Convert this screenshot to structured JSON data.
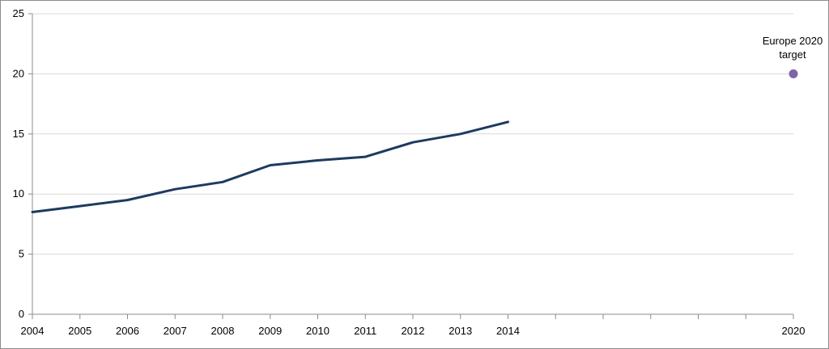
{
  "chart_data": {
    "type": "line",
    "title": "",
    "xlabel": "",
    "ylabel": "",
    "x_ticks": [
      "2004",
      "2005",
      "2006",
      "2007",
      "2008",
      "2009",
      "2010",
      "2011",
      "2012",
      "2013",
      "2014",
      "",
      "",
      "",
      "",
      "",
      "2020"
    ],
    "x_range": [
      2004,
      2020
    ],
    "ylim": [
      0,
      25
    ],
    "y_ticks": [
      0,
      5,
      10,
      15,
      20,
      25
    ],
    "grid": "horizontal",
    "legend": "none",
    "series": [
      {
        "x": [
          2004,
          2005,
          2006,
          2007,
          2008,
          2009,
          2010,
          2011,
          2012,
          2013,
          2014
        ],
        "values": [
          8.5,
          9.0,
          9.5,
          10.4,
          11.0,
          12.4,
          12.8,
          13.1,
          14.3,
          15.0,
          16.0
        ],
        "color": "#1f3a5f"
      }
    ],
    "target_point": {
      "x": 2020,
      "value": 20,
      "label_line1": "Europe 2020",
      "label_line2": "target",
      "color": "#7f63a8"
    }
  }
}
